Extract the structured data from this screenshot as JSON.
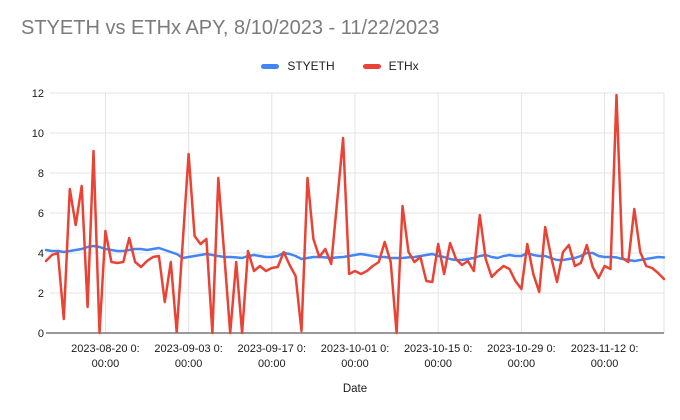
{
  "chart": {
    "title": "STYETH vs ETHx APY, 8/10/2023 - 11/22/2023",
    "title_color": "#7b7b7b",
    "gridline_color": "#e3e3e3",
    "axis_color": "#333333"
  },
  "chart_data": {
    "type": "line",
    "title": "STYETH vs ETHx APY, 8/10/2023 - 11/22/2023",
    "xlabel": "Date",
    "ylabel": "",
    "ylim": [
      0,
      12
    ],
    "y_ticks": [
      0,
      2,
      4,
      6,
      8,
      10,
      12
    ],
    "grid": true,
    "legend_position": "top",
    "x_start": "2023-08-10",
    "x_end": "2023-11-22",
    "x_points": 105,
    "x_tick_indices": [
      10,
      24,
      38,
      52,
      66,
      80,
      94
    ],
    "x_tick_labels_line1": [
      "2023-08-20 0:",
      "2023-09-03 0:",
      "2023-09-17 0:",
      "2023-10-01 0:",
      "2023-10-15 0:",
      "2023-10-29 0:",
      "2023-11-12 0:"
    ],
    "x_tick_labels_line2": [
      "00:00",
      "00:00",
      "00:00",
      "00:00",
      "00:00",
      "00:00",
      "00:00"
    ],
    "series": [
      {
        "name": "STYETH",
        "color": "#4285F4",
        "values": [
          4.15,
          4.1,
          4.1,
          4.05,
          4.1,
          4.15,
          4.2,
          4.3,
          4.35,
          4.3,
          4.2,
          4.15,
          4.1,
          4.1,
          4.15,
          4.2,
          4.2,
          4.15,
          4.2,
          4.25,
          4.15,
          4.05,
          3.95,
          3.75,
          3.8,
          3.85,
          3.9,
          3.95,
          3.9,
          3.85,
          3.8,
          3.8,
          3.78,
          3.75,
          3.85,
          3.9,
          3.85,
          3.8,
          3.8,
          3.85,
          4.0,
          3.95,
          3.85,
          3.7,
          3.75,
          3.8,
          3.8,
          3.78,
          3.75,
          3.78,
          3.8,
          3.85,
          3.9,
          3.95,
          3.9,
          3.85,
          3.8,
          3.8,
          3.75,
          3.75,
          3.75,
          3.78,
          3.8,
          3.85,
          3.9,
          3.95,
          3.85,
          3.8,
          3.7,
          3.65,
          3.65,
          3.7,
          3.75,
          3.85,
          3.9,
          3.8,
          3.75,
          3.85,
          3.9,
          3.85,
          3.85,
          4.0,
          3.9,
          3.85,
          3.85,
          3.75,
          3.65,
          3.65,
          3.7,
          3.75,
          3.85,
          4.0,
          4.0,
          3.85,
          3.8,
          3.8,
          3.78,
          3.7,
          3.65,
          3.6,
          3.65,
          3.7,
          3.75,
          3.8,
          3.78
        ]
      },
      {
        "name": "ETHx",
        "color": "#EA4335",
        "values": [
          3.6,
          3.9,
          4.0,
          0.7,
          7.2,
          5.4,
          7.35,
          1.3,
          9.1,
          0.0,
          5.1,
          3.55,
          3.5,
          3.55,
          4.75,
          3.55,
          3.3,
          3.6,
          3.8,
          3.85,
          1.55,
          3.55,
          0.05,
          4.5,
          8.95,
          4.85,
          4.45,
          4.7,
          0.0,
          7.75,
          3.9,
          0.0,
          3.55,
          0.0,
          4.1,
          3.1,
          3.35,
          3.1,
          3.25,
          3.3,
          4.05,
          3.4,
          2.85,
          0.1,
          7.75,
          4.7,
          3.8,
          4.2,
          3.45,
          6.6,
          9.75,
          2.95,
          3.1,
          2.95,
          3.1,
          3.35,
          3.55,
          4.55,
          3.55,
          0.0,
          6.35,
          4.05,
          3.55,
          3.8,
          2.6,
          2.55,
          4.45,
          2.95,
          4.5,
          3.7,
          3.4,
          3.6,
          3.1,
          5.9,
          3.7,
          2.8,
          3.1,
          3.35,
          3.2,
          2.6,
          2.2,
          4.45,
          2.95,
          2.05,
          5.3,
          3.8,
          2.55,
          4.05,
          4.4,
          3.35,
          3.5,
          4.4,
          3.3,
          2.75,
          3.35,
          3.2,
          11.9,
          3.75,
          3.55,
          6.2,
          4.05,
          3.35,
          3.25,
          3.0,
          2.7
        ]
      }
    ]
  }
}
